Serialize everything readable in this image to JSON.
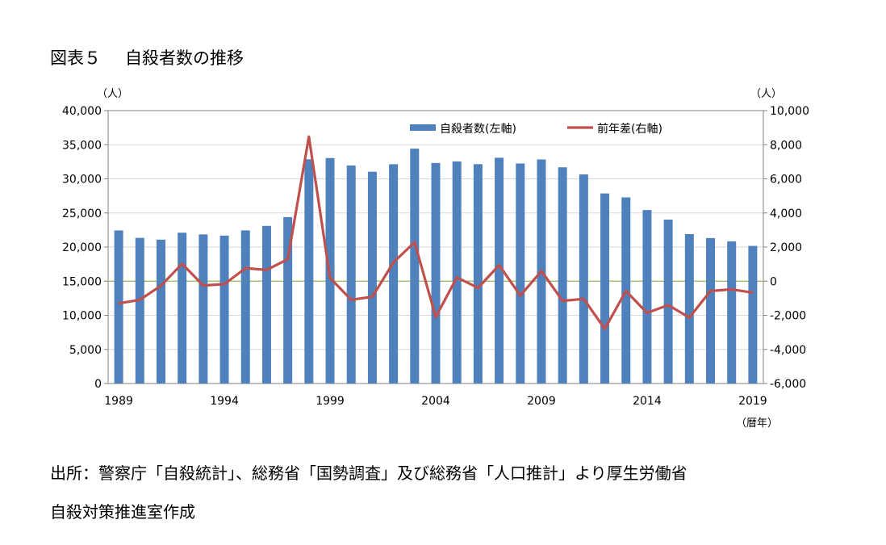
{
  "title": {
    "label": "図表５",
    "text": "自殺者数の推移"
  },
  "source": {
    "line1": "出所：警察庁「自殺統計」、総務省「国勢調査」及び総務省「人口推計」より厚生労働省",
    "line2": "自殺対策推進室作成"
  },
  "chart_data": {
    "type": "bar",
    "x": [
      1989,
      1990,
      1991,
      1992,
      1993,
      1994,
      1995,
      1996,
      1997,
      1998,
      1999,
      2000,
      2001,
      2002,
      2003,
      2004,
      2005,
      2006,
      2007,
      2008,
      2009,
      2010,
      2011,
      2012,
      2013,
      2014,
      2015,
      2016,
      2017,
      2018,
      2019
    ],
    "x_tick_labels": [
      "1989",
      "1994",
      "1999",
      "2004",
      "2009",
      "2014",
      "2019"
    ],
    "x_tick_years": [
      1989,
      1994,
      1999,
      2004,
      2009,
      2014,
      2019
    ],
    "xlabel": "（暦年）",
    "series": [
      {
        "name": "自殺者数(左軸)",
        "type": "bar",
        "axis": "left",
        "color": "#4f81bd",
        "values": [
          22436,
          21346,
          21084,
          22104,
          21851,
          21679,
          22445,
          23104,
          24391,
          32863,
          33048,
          31957,
          31042,
          32143,
          34427,
          32325,
          32552,
          32155,
          33093,
          32249,
          32845,
          31690,
          30651,
          27858,
          27283,
          25427,
          24025,
          21897,
          21321,
          20840,
          20169
        ]
      },
      {
        "name": "前年差(右軸)",
        "type": "line",
        "axis": "right",
        "color": "#c0504d",
        "values": [
          -1306,
          -1090,
          -262,
          1020,
          -253,
          -172,
          766,
          659,
          1287,
          8472,
          185,
          -1091,
          -915,
          1101,
          2284,
          -2102,
          227,
          -397,
          938,
          -844,
          596,
          -1155,
          -1039,
          -2793,
          -575,
          -1856,
          -1402,
          -2128,
          -576,
          -481,
          -671
        ]
      }
    ],
    "left_axis": {
      "unit": "（人）",
      "ylim": [
        0,
        40000
      ],
      "ticks": [
        0,
        5000,
        10000,
        15000,
        20000,
        25000,
        30000,
        35000,
        40000
      ],
      "tick_labels": [
        "0",
        "5,000",
        "10,000",
        "15,000",
        "20,000",
        "25,000",
        "30,000",
        "35,000",
        "40,000"
      ]
    },
    "right_axis": {
      "unit": "（人）",
      "ylim": [
        -6000,
        10000
      ],
      "ticks": [
        -6000,
        -4000,
        -2000,
        0,
        2000,
        4000,
        6000,
        8000,
        10000
      ],
      "tick_labels": [
        "-6,000",
        "-4,000",
        "-2,000",
        "0",
        "2,000",
        "4,000",
        "6,000",
        "8,000",
        "10,000"
      ]
    },
    "zero_line_color": "#9bbb59",
    "grid": true,
    "legend_position": "top-right"
  }
}
